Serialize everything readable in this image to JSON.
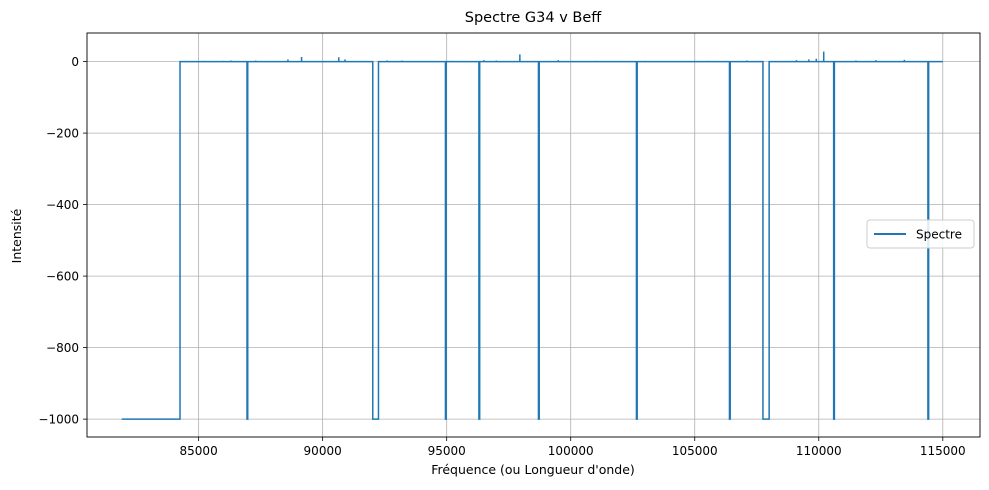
{
  "chart_data": {
    "type": "line",
    "title": "Spectre G34 v Beff",
    "xlabel": "Fréquence (ou Longueur d'onde)",
    "ylabel": "Intensité",
    "xlim": [
      80500,
      116500
    ],
    "ylim": [
      -1050,
      80
    ],
    "xticks": [
      85000,
      90000,
      95000,
      100000,
      105000,
      110000,
      115000
    ],
    "yticks": [
      0,
      -200,
      -400,
      -600,
      -800,
      -1000
    ],
    "ytick_labels": [
      "0",
      "−200",
      "−400",
      "−600",
      "−800",
      "−1000"
    ],
    "grid": true,
    "legend": {
      "position": "center-right",
      "entries": [
        "Spectre"
      ]
    },
    "series": [
      {
        "name": "Spectre",
        "color": "#1f77b4",
        "x": [
          81900,
          84250,
          84250,
          86950,
          86950,
          86980,
          86980,
          92020,
          92020,
          92250,
          92250,
          94950,
          94950,
          94980,
          94980,
          96300,
          96300,
          96330,
          96330,
          98700,
          98700,
          98730,
          98730,
          102650,
          102650,
          102680,
          102680,
          106400,
          106400,
          106430,
          106430,
          107750,
          107750,
          108000,
          108000,
          110600,
          110600,
          110630,
          110630,
          114400,
          114400,
          114430,
          114430,
          115000
        ],
        "y": [
          -1000,
          -1000,
          0,
          0,
          -1000,
          -1000,
          0,
          0,
          -1000,
          -1000,
          0,
          0,
          -1000,
          -1000,
          0,
          0,
          -1000,
          -1000,
          0,
          0,
          -1000,
          -1000,
          0,
          0,
          -1000,
          -1000,
          0,
          0,
          -1000,
          -1000,
          0,
          0,
          -1000,
          -1000,
          0,
          0,
          -1000,
          -1000,
          0,
          0,
          -1000,
          -1000,
          0,
          0
        ]
      }
    ],
    "spikes": [
      {
        "x": 85200,
        "y": 2
      },
      {
        "x": 86000,
        "y": 2
      },
      {
        "x": 86300,
        "y": 3
      },
      {
        "x": 87300,
        "y": 3
      },
      {
        "x": 88600,
        "y": 6
      },
      {
        "x": 89150,
        "y": 13
      },
      {
        "x": 90650,
        "y": 12
      },
      {
        "x": 90900,
        "y": 6
      },
      {
        "x": 92600,
        "y": 3
      },
      {
        "x": 93200,
        "y": 3
      },
      {
        "x": 95200,
        "y": 2
      },
      {
        "x": 96500,
        "y": 4
      },
      {
        "x": 97000,
        "y": 3
      },
      {
        "x": 97950,
        "y": 20
      },
      {
        "x": 99500,
        "y": 4
      },
      {
        "x": 101000,
        "y": 2
      },
      {
        "x": 103000,
        "y": 2
      },
      {
        "x": 105500,
        "y": 2
      },
      {
        "x": 107100,
        "y": 3
      },
      {
        "x": 109100,
        "y": 4
      },
      {
        "x": 109600,
        "y": 6
      },
      {
        "x": 109900,
        "y": 8
      },
      {
        "x": 110200,
        "y": 28
      },
      {
        "x": 111500,
        "y": 3
      },
      {
        "x": 112300,
        "y": 4
      },
      {
        "x": 113450,
        "y": 5
      }
    ]
  }
}
